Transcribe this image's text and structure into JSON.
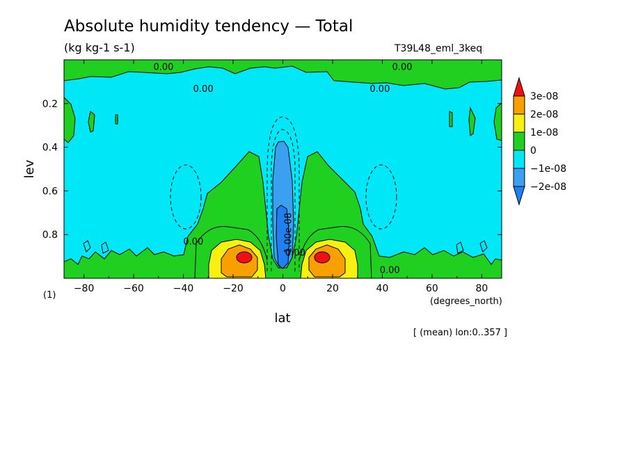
{
  "chart_data": {
    "type": "heatmap",
    "title": "Absolute humidity tendency — Total",
    "units": "(kg kg-1 s-1)",
    "experiment": "T39L48_eml_3keq",
    "xlabel": "lat",
    "x_units": "(degrees_north)",
    "ylabel": "lev",
    "y_units": "(1)",
    "footnote": "[ (mean) lon:0..357 ]",
    "x_ticks": [
      -80,
      -60,
      -40,
      -20,
      0,
      20,
      40,
      60,
      80
    ],
    "x_tick_labels": [
      "−80",
      "−60",
      "−40",
      "−20",
      "0",
      "20",
      "40",
      "60",
      "80"
    ],
    "y_ticks": [
      0.2,
      0.4,
      0.6,
      0.8
    ],
    "y_tick_labels": [
      "0.2",
      "0.4",
      "0.6",
      "0.8"
    ],
    "xlim": [
      -88,
      88
    ],
    "ylim": [
      0.0,
      1.0
    ],
    "y_inverted": true,
    "contour_labels": [
      {
        "text": "0.00",
        "lat": -48,
        "lev": 0.03
      },
      {
        "text": "0.00",
        "lat": -32,
        "lev": 0.13
      },
      {
        "text": "0.00",
        "lat": 39,
        "lev": 0.13
      },
      {
        "text": "0.00",
        "lat": 48,
        "lev": 0.03
      },
      {
        "text": "0.00",
        "lat": 43,
        "lev": 0.96
      },
      {
        "text": "0.00",
        "lat": -36,
        "lev": 0.83
      },
      {
        "text": "-1.00e-08",
        "lat": 2,
        "lev": 0.8
      },
      {
        "text": "0.00",
        "lat": 5,
        "lev": 0.88
      }
    ],
    "levels": [
      -3e-08,
      -2e-08,
      -1e-08,
      0,
      1e-08,
      2e-08,
      3e-08
    ],
    "colorbar_labels": [
      "3e-08",
      "2e-08",
      "1e-08",
      "0",
      "−1e-08",
      "−2e-08"
    ],
    "colors": {
      "below_-2e-08": "#2080f0",
      "-2e-08_to_-1e-08": "#3ca0f0",
      "-1e-08_to_0": "#00e8f8",
      "0_to_1e-08": "#20d020",
      "1e-08_to_2e-08": "#f8f010",
      "2e-08_to_3e-08": "#f8a000",
      "above_3e-08": "#f01010"
    },
    "features": {
      "negative_core_lat": 0,
      "negative_core_lev_range": [
        0.37,
        0.96
      ],
      "positive_maxima": [
        {
          "lat": -15,
          "lev": 0.89,
          "min_level": 3e-08
        },
        {
          "lat": 15,
          "lev": 0.89,
          "min_level": 3e-08
        }
      ],
      "background": "-1e-08_to_0"
    }
  }
}
